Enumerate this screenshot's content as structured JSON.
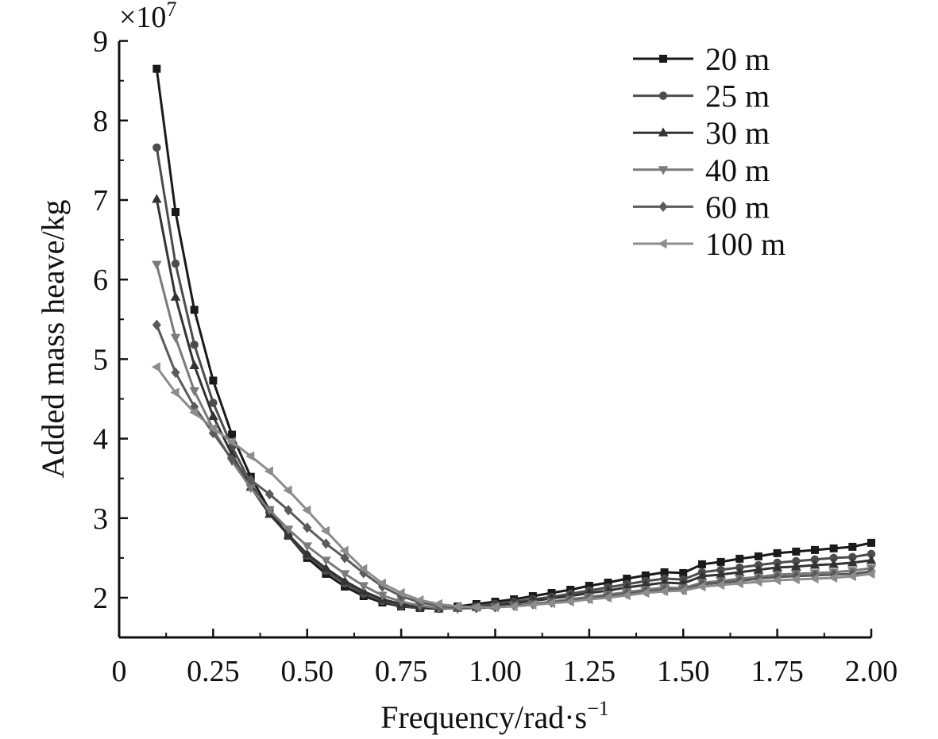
{
  "chart_data": {
    "type": "line",
    "xlabel": "Frequency/rad·s",
    "xlabel_sup": "−1",
    "ylabel": "Added mass heave/kg",
    "y_multiplier": "×10",
    "y_multiplier_exp": "7",
    "xlim": [
      0,
      2.0
    ],
    "ylim": [
      1.5,
      9
    ],
    "x_ticks": [
      0,
      0.25,
      0.5,
      0.75,
      1.0,
      1.25,
      1.5,
      1.75,
      2.0
    ],
    "x_tick_labels": [
      "0",
      "0.25",
      "0.50",
      "0.75",
      "1.00",
      "1.25",
      "1.50",
      "1.75",
      "2.00"
    ],
    "y_ticks": [
      2,
      3,
      4,
      5,
      6,
      7,
      8,
      9
    ],
    "y_tick_labels": [
      "2",
      "3",
      "4",
      "5",
      "6",
      "7",
      "8",
      "9"
    ],
    "legend_position": "top-right",
    "grid": false,
    "x": [
      0.1,
      0.15,
      0.2,
      0.25,
      0.3,
      0.35,
      0.4,
      0.45,
      0.5,
      0.55,
      0.6,
      0.65,
      0.7,
      0.75,
      0.8,
      0.85,
      0.9,
      0.95,
      1.0,
      1.05,
      1.1,
      1.15,
      1.2,
      1.25,
      1.3,
      1.35,
      1.4,
      1.45,
      1.5,
      1.55,
      1.6,
      1.65,
      1.7,
      1.75,
      1.8,
      1.85,
      1.9,
      1.95,
      2.0
    ],
    "series": [
      {
        "name": "20 m",
        "marker": "square",
        "color": "#1a1a1a",
        "values": [
          8.65,
          6.85,
          5.62,
          4.73,
          4.05,
          3.52,
          3.1,
          2.78,
          2.5,
          2.3,
          2.14,
          2.02,
          1.94,
          1.89,
          1.87,
          1.87,
          1.89,
          1.92,
          1.95,
          1.98,
          2.02,
          2.06,
          2.1,
          2.15,
          2.19,
          2.24,
          2.28,
          2.32,
          2.31,
          2.42,
          2.45,
          2.49,
          2.52,
          2.56,
          2.58,
          2.6,
          2.62,
          2.64,
          2.69
        ]
      },
      {
        "name": "25 m",
        "marker": "circle",
        "color": "#4d4d4d",
        "values": [
          7.66,
          6.2,
          5.18,
          4.45,
          3.9,
          3.44,
          3.07,
          2.78,
          2.53,
          2.34,
          2.18,
          2.05,
          1.96,
          1.9,
          1.87,
          1.86,
          1.87,
          1.89,
          1.92,
          1.95,
          1.98,
          2.01,
          2.05,
          2.09,
          2.13,
          2.17,
          2.21,
          2.24,
          2.23,
          2.32,
          2.35,
          2.38,
          2.41,
          2.44,
          2.46,
          2.48,
          2.5,
          2.51,
          2.55
        ]
      },
      {
        "name": "30 m",
        "marker": "triangle-up",
        "color": "#333333",
        "values": [
          7.01,
          5.78,
          4.92,
          4.28,
          3.8,
          3.39,
          3.05,
          2.79,
          2.55,
          2.37,
          2.21,
          2.08,
          1.98,
          1.92,
          1.88,
          1.86,
          1.87,
          1.88,
          1.9,
          1.93,
          1.96,
          1.99,
          2.02,
          2.06,
          2.09,
          2.13,
          2.16,
          2.19,
          2.18,
          2.27,
          2.29,
          2.32,
          2.35,
          2.38,
          2.39,
          2.41,
          2.42,
          2.44,
          2.47
        ]
      },
      {
        "name": "40 m",
        "marker": "triangle-down",
        "color": "#7a7a7a",
        "values": [
          6.19,
          5.27,
          4.6,
          4.12,
          3.72,
          3.38,
          3.1,
          2.86,
          2.65,
          2.47,
          2.3,
          2.15,
          2.03,
          1.95,
          1.9,
          1.87,
          1.86,
          1.87,
          1.88,
          1.9,
          1.92,
          1.95,
          1.98,
          2.01,
          2.04,
          2.07,
          2.1,
          2.13,
          2.12,
          2.19,
          2.21,
          2.24,
          2.26,
          2.29,
          2.3,
          2.31,
          2.32,
          2.34,
          2.37
        ]
      },
      {
        "name": "60 m",
        "marker": "diamond",
        "color": "#5a5a5a",
        "values": [
          5.43,
          4.83,
          4.4,
          4.07,
          3.74,
          3.48,
          3.3,
          3.1,
          2.88,
          2.68,
          2.5,
          2.31,
          2.14,
          2.02,
          1.94,
          1.9,
          1.88,
          1.87,
          1.88,
          1.9,
          1.92,
          1.94,
          1.97,
          1.99,
          2.02,
          2.05,
          2.08,
          2.1,
          2.1,
          2.17,
          2.19,
          2.21,
          2.24,
          2.26,
          2.27,
          2.28,
          2.29,
          2.3,
          2.33
        ]
      },
      {
        "name": "100 m",
        "marker": "triangle-left",
        "color": "#8c8c8c",
        "values": [
          4.9,
          4.58,
          4.33,
          4.13,
          3.96,
          3.78,
          3.59,
          3.35,
          3.1,
          2.84,
          2.59,
          2.36,
          2.18,
          2.06,
          1.97,
          1.92,
          1.89,
          1.88,
          1.88,
          1.89,
          1.91,
          1.93,
          1.95,
          1.98,
          2.0,
          2.03,
          2.06,
          2.08,
          2.09,
          2.14,
          2.16,
          2.18,
          2.2,
          2.22,
          2.23,
          2.24,
          2.25,
          2.27,
          2.3
        ]
      }
    ]
  }
}
